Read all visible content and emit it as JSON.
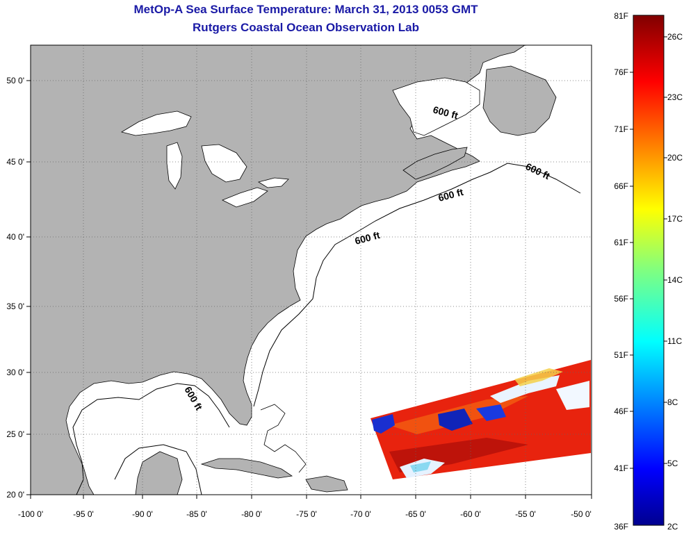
{
  "title_line1": "MetOp-A Sea Surface Temperature:  March 31, 2013 0053 GMT",
  "title_line2": "Rutgers Coastal Ocean Observation Lab",
  "lon_ticks": [
    "-100 0'",
    "-95 0'",
    "-90 0'",
    "-85 0'",
    "-80 0'",
    "-75 0'",
    "-70 0'",
    "-65 0'",
    "-60 0'",
    "-55 0'",
    "-50 0'"
  ],
  "lat_ticks": [
    "50 0'",
    "45 0'",
    "40 0'",
    "35 0'",
    "30 0'",
    "25 0'",
    "20 0'"
  ],
  "contour_labels": [
    "600 ft",
    "600 ft",
    "600 ft",
    "600 ft",
    "600 ft"
  ],
  "colorbar": {
    "f_labels": [
      "81F",
      "76F",
      "71F",
      "66F",
      "61F",
      "56F",
      "51F",
      "46F",
      "41F",
      "36F"
    ],
    "c_labels": [
      "26C",
      "23C",
      "20C",
      "17C",
      "14C",
      "11C",
      "8C",
      "5C",
      "2C"
    ]
  },
  "colors": {
    "title": "#1a1aa6",
    "land": "#b3b3b3",
    "ocean": "#ffffff",
    "grid": "#666666"
  }
}
